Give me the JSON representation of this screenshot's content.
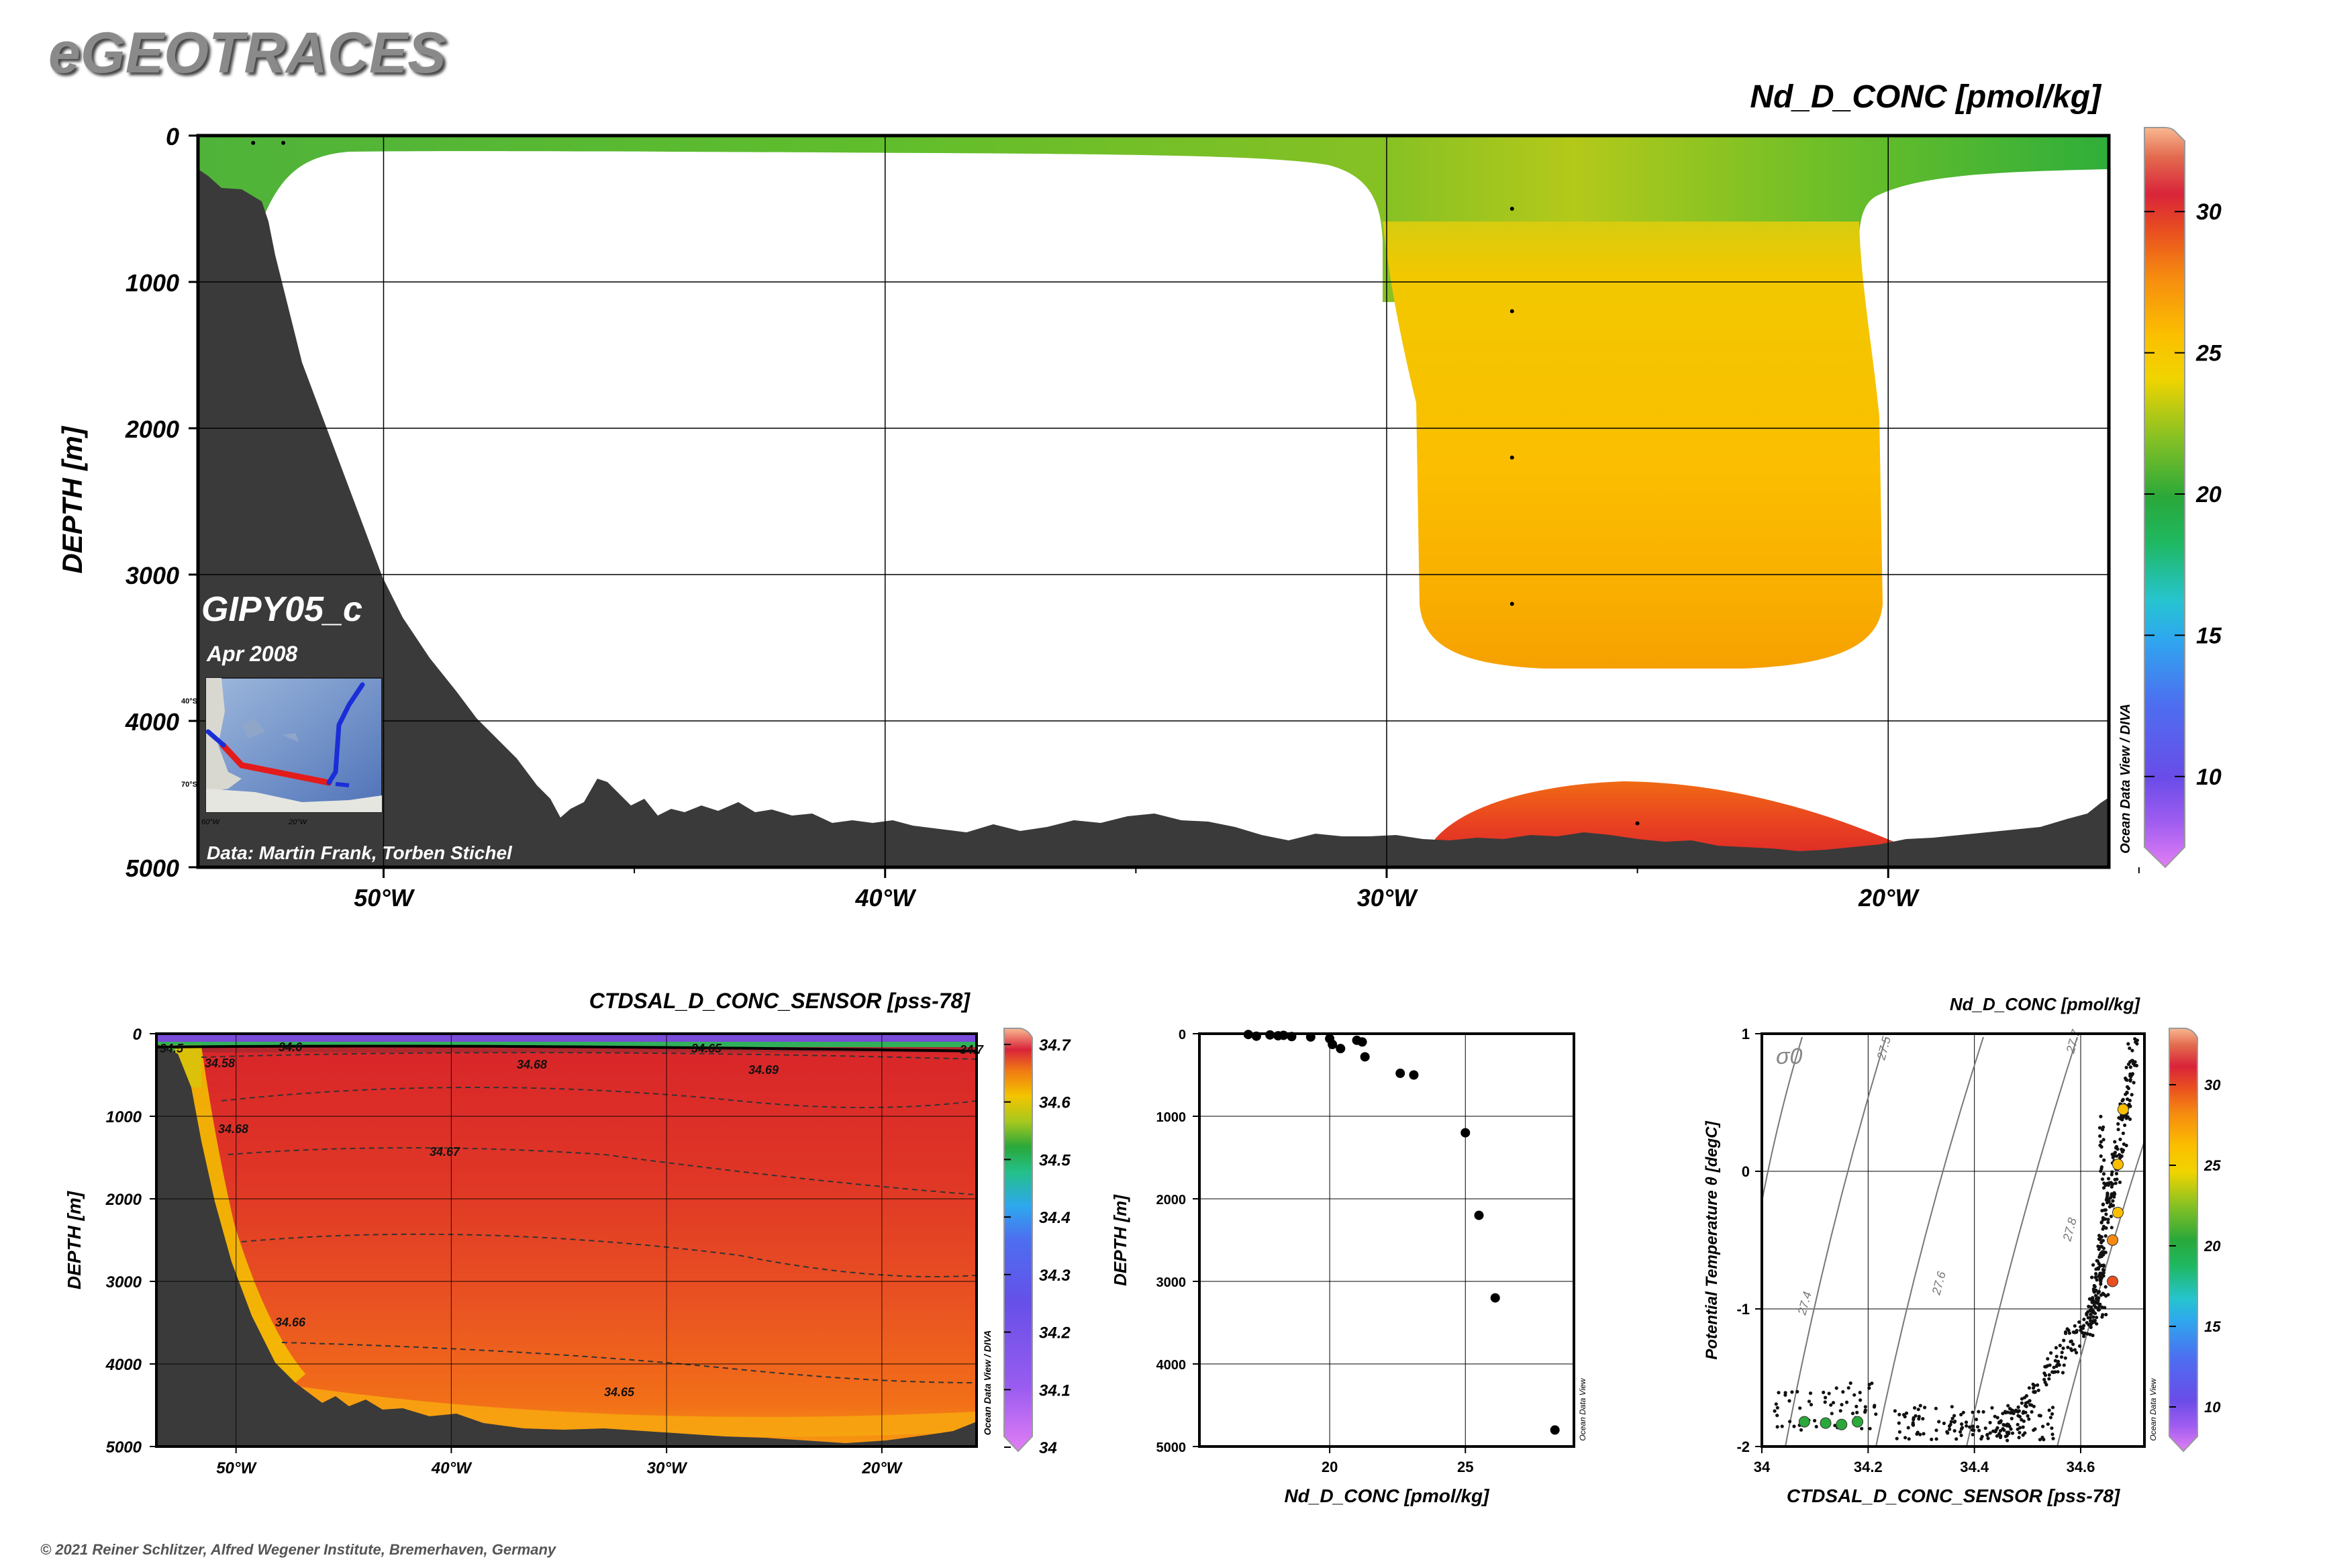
{
  "header": {
    "brand": "eGEOTRACES"
  },
  "footer": {
    "copyright": "© 2021 Reiner Schlitzer, Alfred Wegener Institute, Bremerhaven, Germany"
  },
  "colors": {
    "land": "#3a3a3a",
    "frame": "#000000",
    "grid": "#000000"
  },
  "chart_data": [
    {
      "type": "heatmap",
      "title": "Nd_D_CONC [pmol/kg]",
      "ylabel": "DEPTH [m]",
      "xlabel": "",
      "cruise": "GIPY05_c",
      "date": "Apr 2008",
      "credit": "Data: Martin Frank, Torben Stichel",
      "watermark": "Ocean Data View / DIVA",
      "x_ticks": [
        "50°W",
        "40°W",
        "30°W",
        "20°W"
      ],
      "y_ticks": [
        "0",
        "1000",
        "2000",
        "3000",
        "4000",
        "5000"
      ],
      "xlim": [
        -53.7,
        -15.6
      ],
      "ylim": [
        0,
        5000
      ],
      "colorbar": {
        "ticks": [
          "10",
          "15",
          "20",
          "25",
          "30"
        ],
        "range": [
          7.5,
          32.5
        ]
      },
      "samples": [
        {
          "lon": -52.6,
          "depth": 50,
          "value": 19
        },
        {
          "lon": -52.0,
          "depth": 50,
          "value": 19
        },
        {
          "lon": -27.5,
          "depth": 500,
          "value": 23
        },
        {
          "lon": -27.5,
          "depth": 1200,
          "value": 25
        },
        {
          "lon": -27.5,
          "depth": 2200,
          "value": 25.5
        },
        {
          "lon": -27.5,
          "depth": 3200,
          "value": 26
        },
        {
          "lon": -25.0,
          "depth": 4700,
          "value": 29
        }
      ],
      "inset_map": {
        "lat_labels": [
          "40°S",
          "70°S"
        ],
        "lon_labels": [
          "60°W",
          "20°W"
        ]
      }
    },
    {
      "type": "heatmap",
      "title": "CTDSAL_D_CONC_SENSOR [pss-78]",
      "ylabel": "DEPTH [m]",
      "watermark": "Ocean Data View / DIVA",
      "x_ticks": [
        "50°W",
        "40°W",
        "30°W",
        "20°W"
      ],
      "y_ticks": [
        "0",
        "1000",
        "2000",
        "3000",
        "4000",
        "5000"
      ],
      "xlim": [
        -53.7,
        -15.6
      ],
      "ylim": [
        0,
        5000
      ],
      "colorbar": {
        "ticks": [
          "34.7",
          "34.6",
          "34.5",
          "34.4",
          "34.3",
          "34.2",
          "34.1",
          "34"
        ],
        "range": [
          34.0,
          34.7
        ]
      },
      "contour_labels": [
        "34.5",
        "34.58",
        "34.6",
        "34.65",
        "34.69",
        "34.68",
        "34.68",
        "34.67",
        "34.66",
        "34.65",
        "34.7"
      ]
    },
    {
      "type": "scatter",
      "xlabel": "Nd_D_CONC [pmol/kg]",
      "ylabel": "DEPTH [m]",
      "watermark": "Ocean Data View",
      "x_ticks": [
        "20",
        "25"
      ],
      "y_ticks": [
        "0",
        "1000",
        "2000",
        "3000",
        "4000",
        "5000"
      ],
      "xlim": [
        15.2,
        29.0
      ],
      "ylim": [
        0,
        5000
      ],
      "points": [
        {
          "x": 17.0,
          "y": 10
        },
        {
          "x": 17.3,
          "y": 30
        },
        {
          "x": 17.8,
          "y": 15
        },
        {
          "x": 18.1,
          "y": 25
        },
        {
          "x": 18.3,
          "y": 20
        },
        {
          "x": 18.6,
          "y": 35
        },
        {
          "x": 19.3,
          "y": 40
        },
        {
          "x": 20.0,
          "y": 60
        },
        {
          "x": 20.1,
          "y": 130
        },
        {
          "x": 20.4,
          "y": 180
        },
        {
          "x": 21.0,
          "y": 80
        },
        {
          "x": 21.2,
          "y": 100
        },
        {
          "x": 21.3,
          "y": 280
        },
        {
          "x": 22.6,
          "y": 480
        },
        {
          "x": 23.1,
          "y": 500
        },
        {
          "x": 25.0,
          "y": 1200
        },
        {
          "x": 25.5,
          "y": 2200
        },
        {
          "x": 26.1,
          "y": 3200
        },
        {
          "x": 28.3,
          "y": 4800
        }
      ]
    },
    {
      "type": "scatter",
      "title": "Nd_D_CONC [pmol/kg]",
      "xlabel": "CTDSAL_D_CONC_SENSOR [pss-78]",
      "ylabel": "Potential Temperature θ [degC]",
      "sigma_label": "σ0",
      "isopycnal_labels": [
        "27.4",
        "27.5",
        "27.6",
        "27.7",
        "27.8"
      ],
      "watermark": "Ocean Data View",
      "x_ticks": [
        "34",
        "34.2",
        "34.4",
        "34.6"
      ],
      "y_ticks": [
        "1",
        "0",
        "-1",
        "-2"
      ],
      "xlim": [
        34.0,
        34.72
      ],
      "ylim": [
        -2,
        1
      ],
      "colorbar": {
        "ticks": [
          "30",
          "25",
          "20",
          "15",
          "10"
        ],
        "range": [
          7.5,
          32.5
        ]
      },
      "colored_points": [
        {
          "x": 34.68,
          "y": 0.45,
          "value": 25
        },
        {
          "x": 34.67,
          "y": 0.05,
          "value": 25
        },
        {
          "x": 34.67,
          "y": -0.3,
          "value": 25
        },
        {
          "x": 34.66,
          "y": -0.5,
          "value": 26
        },
        {
          "x": 34.66,
          "y": -0.8,
          "value": 29
        },
        {
          "x": 34.08,
          "y": -1.82,
          "value": 19
        },
        {
          "x": 34.12,
          "y": -1.83,
          "value": 19
        },
        {
          "x": 34.15,
          "y": -1.84,
          "value": 19
        },
        {
          "x": 34.18,
          "y": -1.82,
          "value": 19
        }
      ]
    }
  ]
}
